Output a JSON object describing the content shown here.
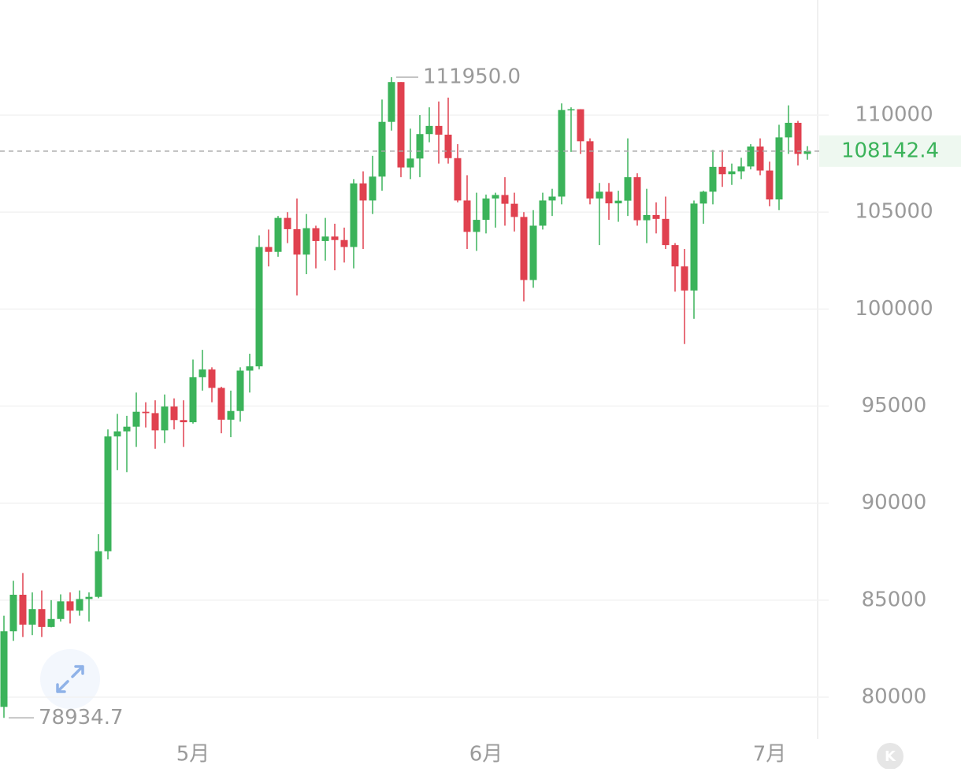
{
  "chart_data": {
    "type": "candlestick",
    "categories": [
      null,
      null,
      null,
      null,
      null,
      null,
      null,
      null,
      null,
      null,
      null,
      null,
      null,
      null,
      null,
      null,
      null,
      null,
      null,
      null,
      "5月",
      null,
      null,
      null,
      null,
      null,
      null,
      null,
      null,
      null,
      null,
      null,
      null,
      null,
      null,
      null,
      null,
      null,
      null,
      null,
      null,
      null,
      null,
      null,
      null,
      null,
      null,
      null,
      null,
      null,
      null,
      "6月",
      null,
      null,
      null,
      null,
      null,
      null,
      null,
      null,
      null,
      null,
      null,
      null,
      null,
      null,
      null,
      null,
      null,
      null,
      null,
      null,
      null,
      null,
      null,
      null,
      null,
      null,
      null,
      null,
      null,
      "7月",
      null,
      null,
      null,
      null
    ],
    "open": [
      79500,
      83400,
      85280,
      83740,
      84540,
      83620,
      84030,
      84940,
      84460,
      85060,
      85170,
      87520,
      93440,
      93700,
      93940,
      94710,
      94640,
      93750,
      94980,
      94280,
      94170,
      96490,
      96890,
      95940,
      94300,
      94750,
      96830,
      97050,
      103200,
      102950,
      104700,
      104120,
      102810,
      104170,
      103510,
      103740,
      103560,
      103200,
      106480,
      105600,
      106830,
      109650,
      111700,
      107300,
      107760,
      109020,
      109440,
      108990,
      107780,
      105600,
      103980,
      104600,
      105700,
      105880,
      105430,
      104750,
      101500,
      104300,
      105600,
      105800,
      110260,
      110300,
      108650,
      105700,
      106050,
      105450,
      105590,
      106800,
      104580,
      104850,
      104650,
      103300,
      102200,
      100960,
      105440,
      106050,
      107330,
      106950,
      107100,
      107350,
      108380,
      107140,
      105650,
      108850,
      109600,
      108000
    ],
    "high": [
      84200,
      86000,
      86400,
      85400,
      85500,
      85000,
      85300,
      85400,
      85500,
      85400,
      88400,
      93800,
      94600,
      94500,
      95700,
      95200,
      95300,
      95600,
      95400,
      95300,
      97400,
      97900,
      97000,
      96000,
      95800,
      97000,
      97700,
      103800,
      104100,
      104800,
      105000,
      105700,
      104900,
      104300,
      104700,
      104400,
      104200,
      106700,
      107100,
      107900,
      110800,
      111950,
      111700,
      109300,
      110000,
      110400,
      110700,
      110900,
      108500,
      106900,
      106000,
      105900,
      106000,
      106800,
      106000,
      105000,
      105100,
      106000,
      106200,
      110600,
      110400,
      110300,
      108800,
      106500,
      106500,
      106100,
      108800,
      107000,
      106200,
      105500,
      105800,
      103400,
      103100,
      105600,
      106100,
      108200,
      108200,
      107500,
      107800,
      108500,
      108800,
      107600,
      109500,
      110500,
      109700,
      108400
    ],
    "low": [
      78934.7,
      82900,
      83100,
      83200,
      83100,
      83600,
      83900,
      83800,
      84200,
      83900,
      85100,
      87100,
      91700,
      91600,
      92900,
      93900,
      92800,
      93100,
      93800,
      92900,
      94100,
      95800,
      95200,
      93600,
      93400,
      94200,
      95700,
      96900,
      102200,
      102700,
      103400,
      100700,
      101800,
      102100,
      102500,
      102000,
      102400,
      102100,
      103100,
      104900,
      106100,
      109200,
      106800,
      106700,
      106800,
      108600,
      107500,
      107500,
      105500,
      103100,
      103000,
      103900,
      104200,
      104300,
      104000,
      100400,
      101100,
      104100,
      104800,
      105400,
      108100,
      108000,
      105400,
      103300,
      104600,
      104500,
      104800,
      104300,
      103400,
      103900,
      103100,
      100900,
      98200,
      99500,
      104400,
      105400,
      106300,
      106400,
      106700,
      107200,
      106900,
      105300,
      105100,
      108000,
      107400,
      107700
    ],
    "close": [
      83400,
      85280,
      83740,
      84540,
      83620,
      84030,
      84940,
      84460,
      85060,
      85170,
      87520,
      93440,
      93700,
      93940,
      94710,
      94640,
      93750,
      94980,
      94280,
      94170,
      96490,
      96890,
      95940,
      94300,
      94750,
      96830,
      97050,
      103200,
      102950,
      104700,
      104120,
      102810,
      104170,
      103510,
      103740,
      103560,
      103200,
      106480,
      105600,
      106830,
      109650,
      111700,
      107300,
      107760,
      109020,
      109440,
      108990,
      107780,
      105600,
      103980,
      104600,
      105700,
      105880,
      105430,
      104750,
      101500,
      104300,
      105600,
      105800,
      110260,
      110300,
      108650,
      105700,
      106050,
      105450,
      105590,
      106800,
      104580,
      104850,
      104650,
      103300,
      102200,
      100960,
      105440,
      106050,
      107330,
      106950,
      107100,
      107350,
      108380,
      107140,
      105650,
      108850,
      109600,
      108000,
      108142.4
    ],
    "up_color": "#3bb35a",
    "down_color": "#e0414f",
    "ylim": [
      77850,
      115930
    ],
    "yticks": [
      80000,
      85000,
      90000,
      95000,
      100000,
      105000,
      110000
    ],
    "grid": true,
    "high_label": "111950.0",
    "low_label": "78934.7",
    "badge": "K"
  }
}
